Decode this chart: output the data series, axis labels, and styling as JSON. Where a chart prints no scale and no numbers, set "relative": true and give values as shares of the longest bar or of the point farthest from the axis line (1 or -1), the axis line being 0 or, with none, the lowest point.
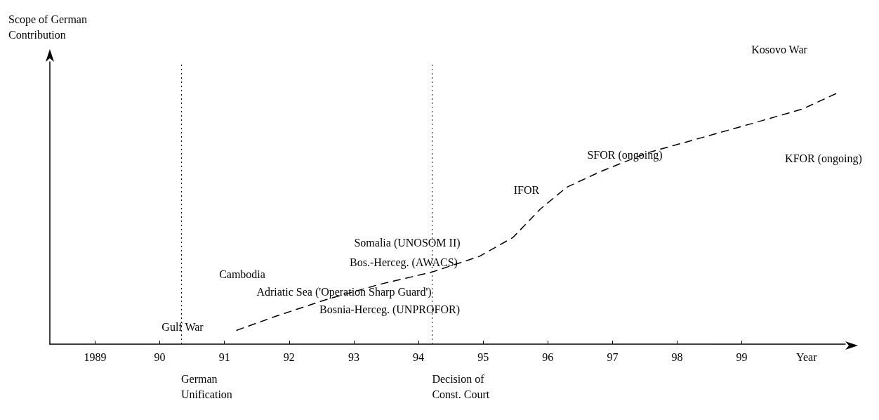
{
  "chart_data": {
    "type": "line",
    "relative": true,
    "ylabel": "Scope of German Contribution",
    "xlabel": "Year",
    "xlim": [
      1988.3,
      2000.6
    ],
    "xticks": [
      {
        "value": 1989,
        "label": "1989"
      },
      {
        "value": 1990,
        "label": "90"
      },
      {
        "value": 1991,
        "label": "91"
      },
      {
        "value": 1992,
        "label": "92"
      },
      {
        "value": 1993,
        "label": "93"
      },
      {
        "value": 1994,
        "label": "94"
      },
      {
        "value": 1995,
        "label": "95"
      },
      {
        "value": 1996,
        "label": "96"
      },
      {
        "value": 1997,
        "label": "97"
      },
      {
        "value": 1998,
        "label": "98"
      },
      {
        "value": 1999,
        "label": "99"
      }
    ],
    "x": [
      1991.19,
      1991.81,
      1992.54,
      1993.38,
      1994.21,
      1994.94,
      1995.46,
      1995.88,
      1996.29,
      1996.81,
      1997.54,
      1998.06,
      1999.1,
      1999.94,
      2000.51
    ],
    "values": [
      0.055,
      0.112,
      0.174,
      0.236,
      0.286,
      0.348,
      0.423,
      0.535,
      0.622,
      0.684,
      0.759,
      0.796,
      0.871,
      0.933,
      1
    ],
    "color": "#000000",
    "line_style": "dashed",
    "marker": "none",
    "ref_lines": [
      {
        "axis": "x",
        "value": 1990.33,
        "label": "German\nUnification",
        "line_style": "dotted"
      },
      {
        "axis": "x",
        "value": 1994.21,
        "label": "Decision of\nConst. Court",
        "line_style": "dotted"
      }
    ],
    "annotations": [
      "Gulf War",
      "Cambodia",
      "Adriatic Sea ('Operation Sharp Guard')",
      "Bosnia-Herceg. (UNPROFOR)",
      "Somalia (UNOSOM II)",
      "Bos.-Herceg. (AWACS)",
      "IFOR",
      "SFOR (ongoing)",
      "Kosovo War",
      "KFOR (ongoing)"
    ]
  }
}
